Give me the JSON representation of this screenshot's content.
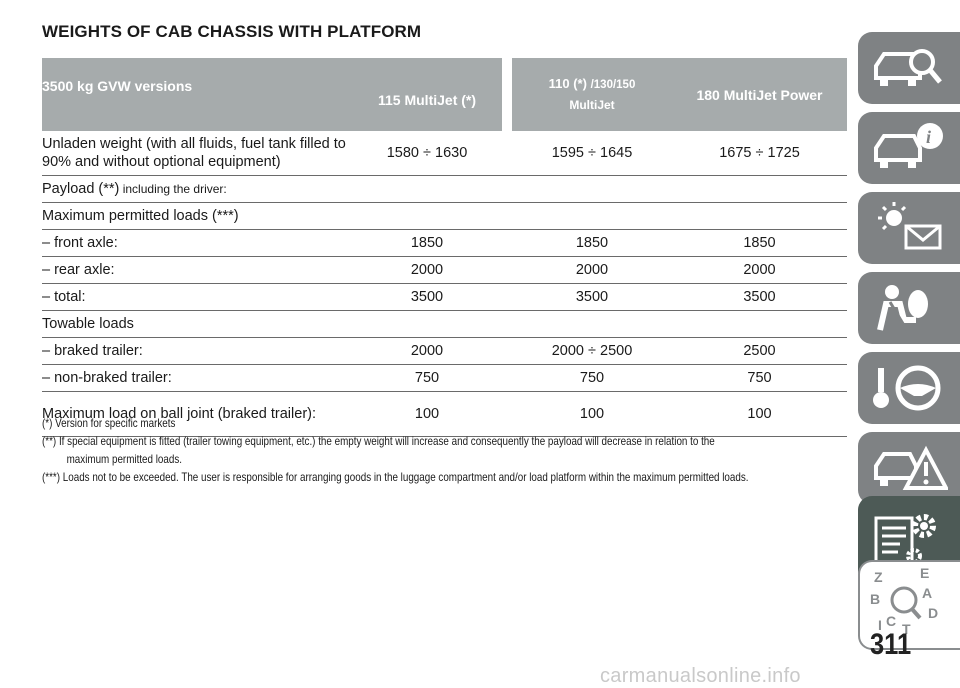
{
  "title": "WEIGHTS OF CAB CHASSIS WITH PLATFORM",
  "header": {
    "col0": "3500 kg GVW versions",
    "col1": "115 MultiJet (*)",
    "col2_a": "110 (*)",
    "col2_b": "/130/150",
    "col2_c": "MultiJet",
    "col3": "180 MultiJet Power"
  },
  "rows": {
    "unladen": {
      "label_a": "Unladen weight (with all fluids, fuel tank filled to",
      "label_b": "90% and without optional equipment)",
      "v1": "1580 ÷ 1630",
      "v2": "1595 ÷ 1645",
      "v3": "1675 ÷ 1725"
    },
    "payload": {
      "label_a": "Payload (**)",
      "label_b": " including the driver:"
    },
    "maxloads": {
      "label": "Maximum permitted loads (***)"
    },
    "front": {
      "label": "– front axle:",
      "v1": "1850",
      "v2": "1850",
      "v3": "1850"
    },
    "rear": {
      "label": "– rear axle:",
      "v1": "2000",
      "v2": "2000",
      "v3": "2000"
    },
    "total": {
      "label": "– total:",
      "v1": "3500",
      "v2": "3500",
      "v3": "3500"
    },
    "towable": {
      "label": "Towable loads"
    },
    "braked": {
      "label": "– braked trailer:",
      "v1": "2000",
      "v2": "2000 ÷ 2500",
      "v3": "2500"
    },
    "nonbraked": {
      "label": "– non-braked trailer:",
      "v1": "750",
      "v2": "750",
      "v3": "750"
    },
    "balljoint": {
      "label": "Maximum load on ball joint (braked trailer):",
      "v1": "100",
      "v2": "100",
      "v3": "100"
    }
  },
  "notes": {
    "n1": "(*) Version for specific markets",
    "n2a": "(**) If special equipment is fitted (trailer towing equipment, etc.) the empty weight will increase and consequently the payload will decrease in relation to the",
    "n2b": "maximum permitted loads.",
    "n3": "(***) Loads not to be exceeded. The user is responsible for arranging goods in the luggage compartment and/or load platform within the maximum permitted loads."
  },
  "sidebar": {
    "tabs": [
      "car-search-icon",
      "car-info-icon",
      "warning-lights-icon",
      "airbag-safety-icon",
      "steering-key-icon",
      "car-warning-triangle-icon",
      "car-wrench-icon",
      "specs-gear-icon",
      "alphabet-index-icon"
    ],
    "active_index": 7,
    "tab_color": "#7f8284",
    "active_color": "#4d5a56",
    "index_letters": [
      "Z",
      "E",
      "B",
      "A",
      "C",
      "D",
      "T"
    ]
  },
  "page_number": "311",
  "watermark": "carmanualsonline.info"
}
